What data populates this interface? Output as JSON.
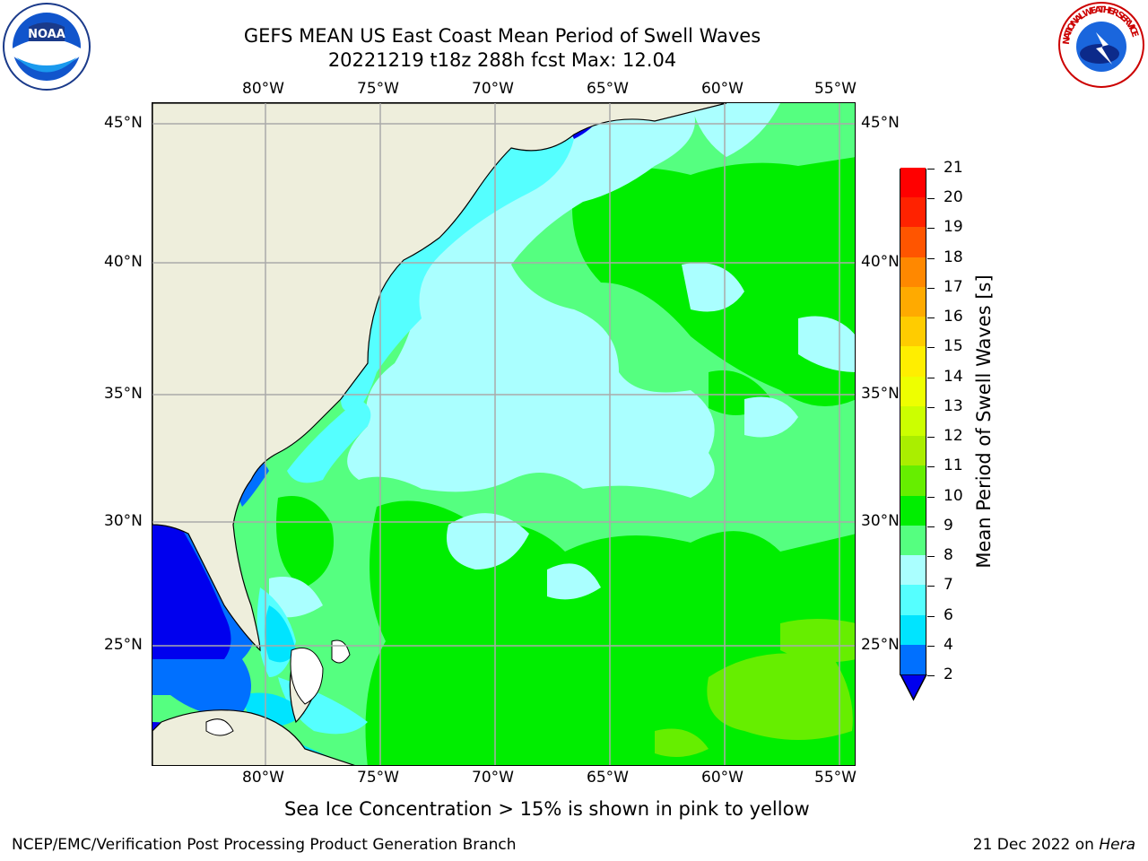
{
  "header": {
    "title_line1": "GEFS MEAN US East Coast Mean Period of Swell Waves",
    "title_line2": "20221219 t18z 288h fcst   Max: 12.04"
  },
  "logos": {
    "left": "NOAA",
    "right": "NATIONAL WEATHER SERVICE"
  },
  "map": {
    "lon_labels": [
      "80°W",
      "75°W",
      "70°W",
      "65°W",
      "60°W",
      "55°W"
    ],
    "lat_labels": [
      "45°N",
      "40°N",
      "35°N",
      "30°N",
      "25°N"
    ],
    "colors": {
      "land": "#eeeedc",
      "c_2_4": "#0000ee",
      "c_4_6": "#0070ff",
      "c_6_7": "#00e4ff",
      "c_7_8": "#55ffff",
      "c_8_9": "#aaffff",
      "c_9_10": "#55ff80",
      "c_10_11": "#00ee00",
      "c_11_12": "#66ee00",
      "grid": "#aaaaaa"
    }
  },
  "colorbar": {
    "label": "Mean Period of Swell Waves [s]",
    "ticks": [
      "2",
      "4",
      "6",
      "7",
      "8",
      "9",
      "10",
      "11",
      "12",
      "13",
      "14",
      "15",
      "16",
      "17",
      "18",
      "19",
      "20",
      "21"
    ],
    "colors": [
      "#0070ff",
      "#00e4ff",
      "#55ffff",
      "#aaffff",
      "#55ff80",
      "#00ee00",
      "#66ee00",
      "#aaee00",
      "#ccff00",
      "#eeff00",
      "#ffee00",
      "#ffcc00",
      "#ffaa00",
      "#ff8800",
      "#ff5500",
      "#ff2200",
      "#ff0000"
    ],
    "extend_color": "#0000ee"
  },
  "note": "Sea Ice Concentration > 15% is shown in pink to yellow",
  "footer": {
    "left": "NCEP/EMC/Verification Post Processing Product Generation Branch",
    "date": "21 Dec 2022 on ",
    "host": "Hera"
  }
}
